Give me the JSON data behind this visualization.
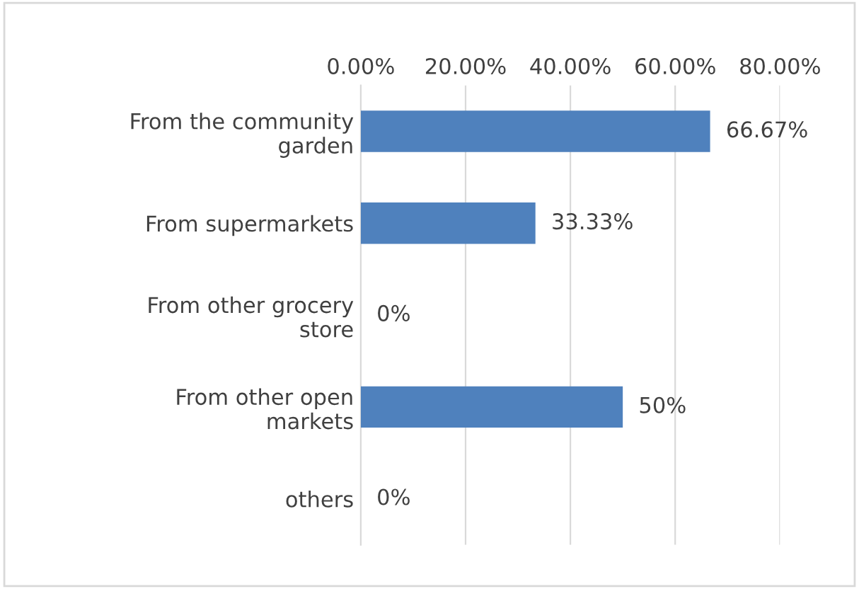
{
  "chart_data": {
    "type": "bar",
    "orientation": "horizontal",
    "categories": [
      "From the community\ngarden",
      "From supermarkets",
      "From other grocery\nstore",
      "From other open\nmarkets",
      "others"
    ],
    "values": [
      66.67,
      33.33,
      0,
      50,
      0
    ],
    "value_labels": [
      "66.67%",
      "33.33%",
      "0%",
      "50%",
      "0%"
    ],
    "color": "#4f81bd",
    "xlim": [
      0,
      80
    ],
    "xticks": [
      {
        "value": 0,
        "label": "0.00%"
      },
      {
        "value": 20,
        "label": "20.00%"
      },
      {
        "value": 40,
        "label": "40.00%"
      },
      {
        "value": 60,
        "label": "60.00%"
      },
      {
        "value": 80,
        "label": "80.00%"
      }
    ],
    "grid": "x",
    "legend": false
  }
}
